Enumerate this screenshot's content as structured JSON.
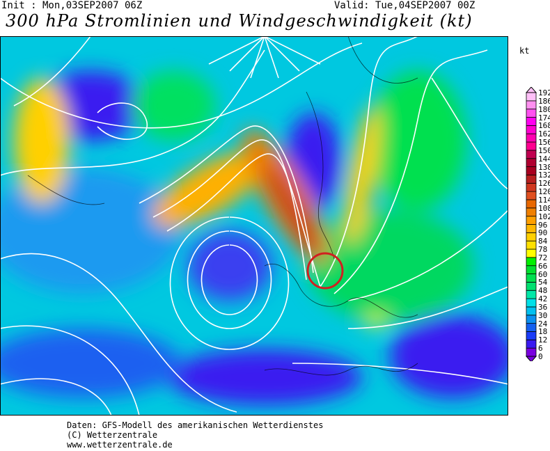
{
  "header": {
    "init": "Init : Mon,03SEP2007 06Z",
    "valid": "Valid: Tue,04SEP2007 00Z",
    "title": "300 hPa Stromlinien und Windgeschwindigkeit (kt)"
  },
  "legend": {
    "unit": "kt",
    "labels": [
      "0",
      "6",
      "12",
      "18",
      "24",
      "30",
      "36",
      "42",
      "48",
      "54",
      "60",
      "66",
      "72",
      "78",
      "84",
      "90",
      "96",
      "102",
      "108",
      "114",
      "120",
      "126",
      "132",
      "138",
      "144",
      "150",
      "156",
      "162",
      "168",
      "174",
      "180",
      "186",
      "192"
    ],
    "colors": [
      "#7a00e0",
      "#3a1af0",
      "#1a3cf8",
      "#1460f0",
      "#0a90f0",
      "#00c0f0",
      "#00e0e8",
      "#00e8a8",
      "#00e070",
      "#00e050",
      "#00e030",
      "#00f000",
      "#ffff00",
      "#ffe000",
      "#ffd000",
      "#ffb800",
      "#ffa000",
      "#f08000",
      "#e86800",
      "#e05020",
      "#d03820",
      "#b82020",
      "#a80020",
      "#b00030",
      "#c00050",
      "#ff0090",
      "#ff00b0",
      "#ff00d0",
      "#ff00f0",
      "#ff50f0",
      "#ff90f0",
      "#ffc0f8"
    ]
  },
  "map": {
    "highlight_color": "#d02020"
  },
  "footer": {
    "line1": "Daten: GFS-Modell des amerikanischen Wetterdienstes",
    "line2": "(C) Wetterzentrale",
    "line3": "www.wetterzentrale.de"
  }
}
